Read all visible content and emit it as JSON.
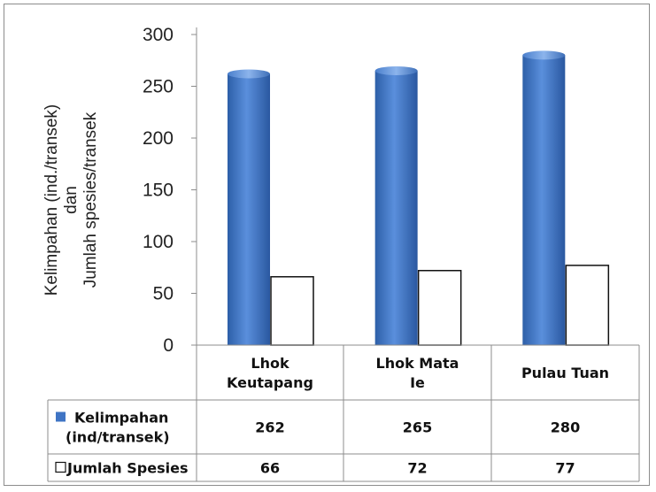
{
  "chart_data": {
    "type": "bar",
    "title": "",
    "ylabel_lines": [
      "Kelimpahan (ind./transek)",
      "dan",
      "Jumlah spesies/transek"
    ],
    "ylim": [
      0,
      300
    ],
    "yticks": [
      0,
      50,
      100,
      150,
      200,
      250,
      300
    ],
    "categories": [
      "Lhok Keutapang",
      "Lhok Mata Ie",
      "Pulau Tuan"
    ],
    "category_lines": [
      [
        "Lhok",
        "Keutapang"
      ],
      [
        "Lhok Mata",
        "Ie"
      ],
      [
        "Pulau Tuan"
      ]
    ],
    "series": [
      {
        "name": "Kelimpahan (ind/transek)",
        "name_lines": [
          "Kelimpahan",
          "(ind/transek)"
        ],
        "values": [
          262,
          265,
          280
        ],
        "color": "#3f74c4"
      },
      {
        "name": "Jumlah Spesies",
        "name_lines": [
          "Jumlah Spesies"
        ],
        "values": [
          66,
          72,
          77
        ],
        "color": "#ffffff"
      }
    ],
    "data_table": true,
    "legend": "data-table",
    "grid": false
  }
}
